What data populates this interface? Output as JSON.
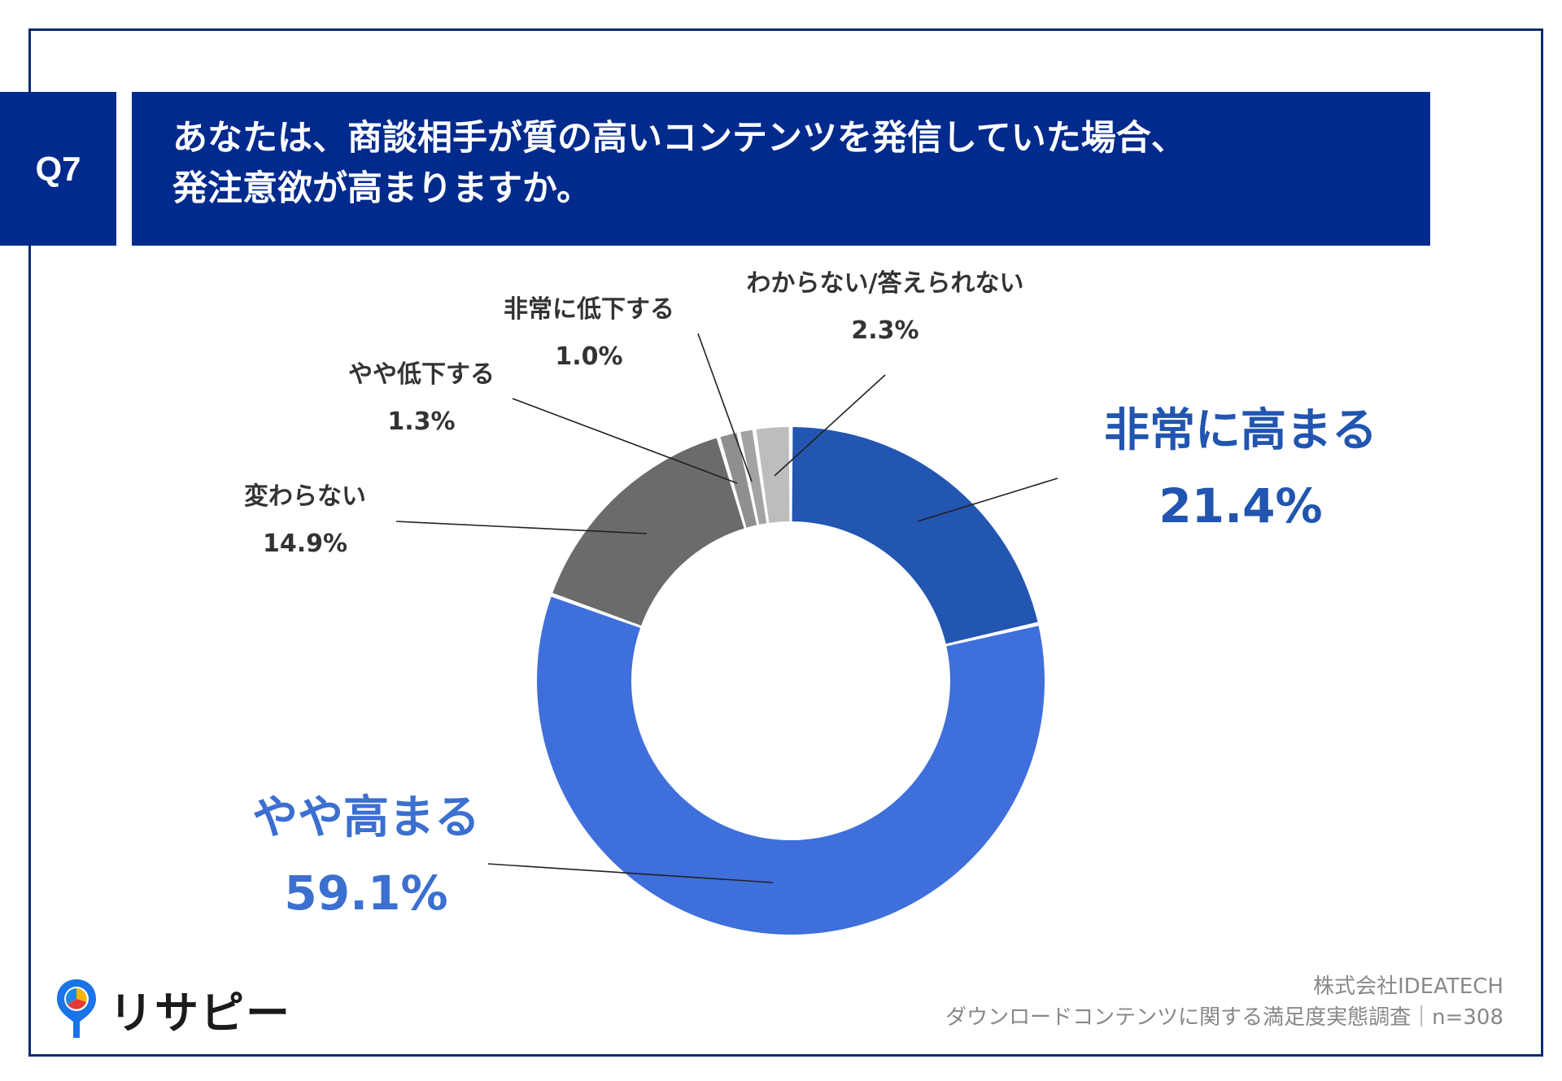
{
  "question": {
    "number": "Q7",
    "line1": "あなたは、商談相手が質の高いコンテンツを発信していた場合、",
    "line2": "発注意欲が高まりますか。"
  },
  "chart_data": {
    "type": "pie",
    "categories": [
      "非常に高まる",
      "やや高まる",
      "変わらない",
      "やや低下する",
      "非常に低下する",
      "わからない/答えられない"
    ],
    "values": [
      21.4,
      59.1,
      14.9,
      1.3,
      1.0,
      2.3
    ],
    "value_labels": [
      "21.4%",
      "59.1%",
      "14.9%",
      "1.3%",
      "1.0%",
      "2.3%"
    ],
    "colors": [
      "#2256b0",
      "#3f6fdb",
      "#6b6b6b",
      "#8f8f8f",
      "#a3a3a3",
      "#bdbdbd"
    ],
    "label_colors": [
      "#2155b0",
      "#3b6fd0",
      "#333333",
      "#333333",
      "#333333",
      "#333333"
    ],
    "style": "donut"
  },
  "footer": {
    "company": "株式会社IDEATECH",
    "survey": "ダウンロードコンテンツに関する満足度実態調査｜n=308"
  },
  "logo": {
    "name": "リサピー",
    "icon": "map-pin-icon"
  }
}
